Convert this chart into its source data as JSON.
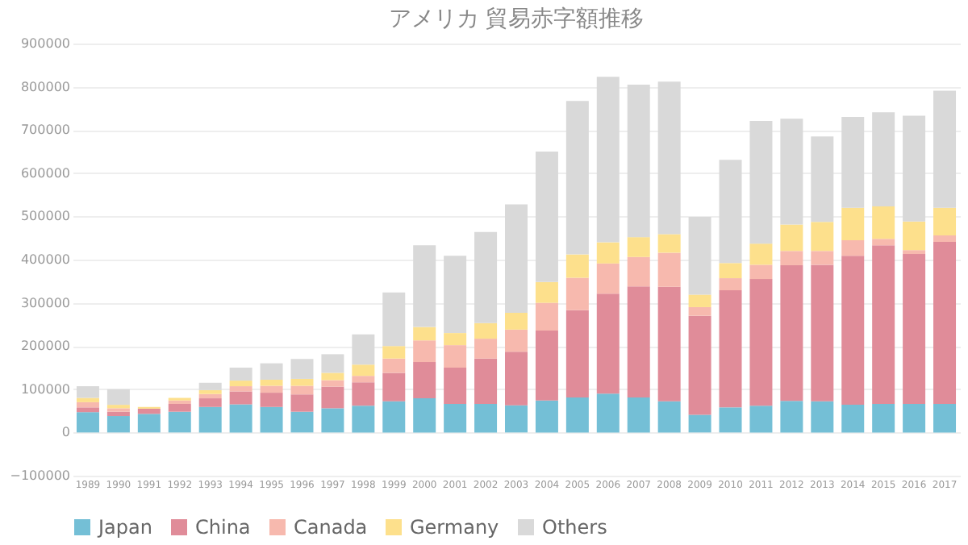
{
  "chart_data": {
    "type": "bar",
    "title": "アメリカ 貿易赤字額推移",
    "stacked": true,
    "legend": "bottom",
    "grid": "y",
    "categories": [
      "1989",
      "1990",
      "1991",
      "1992",
      "1993",
      "1994",
      "1995",
      "1996",
      "1997",
      "1998",
      "1999",
      "2000",
      "2001",
      "2002",
      "2003",
      "2004",
      "2005",
      "2006",
      "2007",
      "2008",
      "2009",
      "2010",
      "2011",
      "2012",
      "2013",
      "2014",
      "2015",
      "2016",
      "2017"
    ],
    "ylim": [
      -100000,
      900000
    ],
    "yticks": [
      -100000,
      0,
      100000,
      200000,
      300000,
      400000,
      500000,
      600000,
      700000,
      800000,
      900000
    ],
    "series": [
      {
        "name": "Japan",
        "color": "#74bfd6",
        "values": [
          47000,
          38000,
          43000,
          48000,
          59000,
          65000,
          59000,
          48000,
          56000,
          62000,
          72000,
          79000,
          66000,
          66000,
          63000,
          74000,
          81000,
          90000,
          81000,
          72000,
          41000,
          58000,
          62000,
          73000,
          72000,
          64000,
          66000,
          66000,
          66000
        ]
      },
      {
        "name": "China",
        "color": "#e08c99",
        "values": [
          11000,
          10000,
          12000,
          18000,
          20000,
          30000,
          33000,
          40000,
          50000,
          54000,
          66000,
          84000,
          84000,
          105000,
          124000,
          162000,
          202000,
          231000,
          257000,
          265000,
          229000,
          271000,
          293000,
          314000,
          316000,
          345000,
          367000,
          347000,
          375000
        ]
      },
      {
        "name": "Canada",
        "color": "#f7b9ae",
        "values": [
          12000,
          8000,
          null,
          8000,
          10000,
          12000,
          16000,
          20000,
          15000,
          15000,
          33000,
          50000,
          52000,
          46000,
          51000,
          64000,
          75000,
          70000,
          68000,
          79000,
          20000,
          28000,
          33000,
          33000,
          32000,
          36000,
          15000,
          9000,
          15000
        ]
      },
      {
        "name": "Germany",
        "color": "#fde08c",
        "values": [
          10000,
          8000,
          4000,
          6000,
          9000,
          13000,
          14000,
          16000,
          17000,
          26000,
          29000,
          31000,
          28000,
          36000,
          39000,
          48000,
          54000,
          49000,
          46000,
          43000,
          29000,
          35000,
          49000,
          61000,
          67000,
          75000,
          75000,
          66000,
          64000
        ]
      },
      {
        "name": "Others",
        "color": "#d9d9d9",
        "values": [
          27000,
          36000,
          null,
          null,
          17000,
          30000,
          38000,
          46000,
          43000,
          70000,
          124000,
          189000,
          179000,
          211000,
          251000,
          302000,
          355000,
          383000,
          353000,
          353000,
          180000,
          239000,
          284000,
          245000,
          198000,
          210000,
          218000,
          245000,
          271000
        ]
      }
    ]
  }
}
